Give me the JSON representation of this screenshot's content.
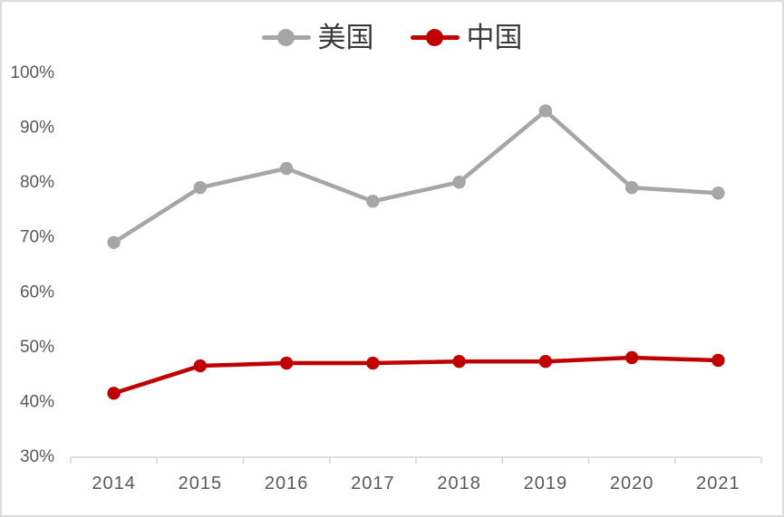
{
  "figure": {
    "background_color": "#ffffff",
    "border_color": "#dbdbdb",
    "axis_line_color": "#d6d6d6",
    "tick_text_color": "#595959"
  },
  "legend": {
    "items": [
      {
        "label": "美国",
        "color": "#a6a6a6"
      },
      {
        "label": "中国",
        "color": "#c00000"
      }
    ]
  },
  "chart_data": {
    "type": "line",
    "title": "",
    "xlabel": "",
    "ylabel": "",
    "categories": [
      "2014",
      "2015",
      "2016",
      "2017",
      "2018",
      "2019",
      "2020",
      "2021"
    ],
    "series": [
      {
        "name": "美国",
        "color": "#a6a6a6",
        "values": [
          69,
          79,
          82.5,
          76.5,
          80,
          93,
          79,
          78
        ]
      },
      {
        "name": "中国",
        "color": "#c00000",
        "values": [
          41.5,
          46.5,
          47,
          47,
          47.3,
          47.3,
          48,
          47.5
        ]
      }
    ],
    "y_axis": {
      "min": 30,
      "max": 100,
      "step": 10,
      "tick_labels": [
        "30%",
        "40%",
        "50%",
        "60%",
        "70%",
        "80%",
        "90%",
        "100%"
      ]
    },
    "grid": false,
    "legend_position": "top-center",
    "marker": "circle"
  }
}
